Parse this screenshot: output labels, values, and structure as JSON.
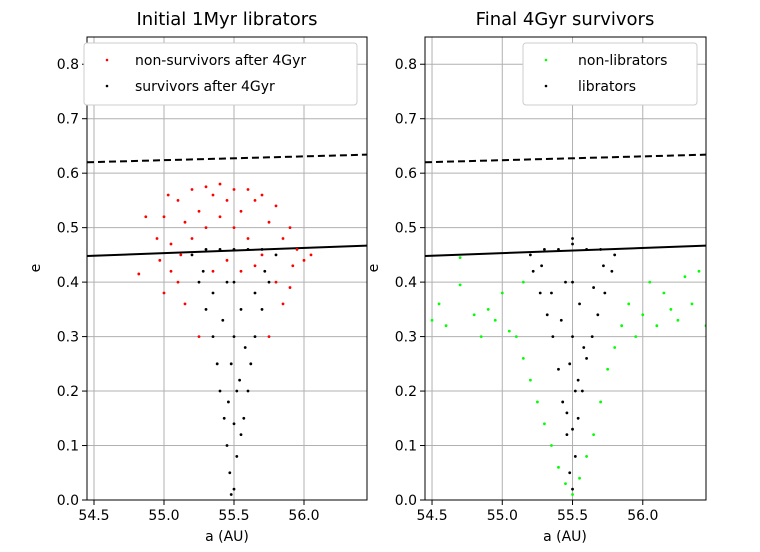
{
  "chart_data": [
    {
      "type": "scatter",
      "title": "Initial 1Myr librators",
      "xlabel": "a (AU)",
      "ylabel": "e",
      "xlim": [
        54.45,
        56.45
      ],
      "ylim": [
        0.0,
        0.85
      ],
      "xticks": [
        "54.5",
        "55.0",
        "55.5",
        "56.0"
      ],
      "yticks": [
        "0.0",
        "0.1",
        "0.2",
        "0.3",
        "0.4",
        "0.5",
        "0.6",
        "0.7",
        "0.8"
      ],
      "grid": true,
      "legend_position": "top-right",
      "lines": [
        {
          "style": "dashed",
          "x": [
            54.45,
            56.45
          ],
          "y": [
            0.62,
            0.634
          ]
        },
        {
          "style": "solid",
          "x": [
            54.45,
            56.45
          ],
          "y": [
            0.448,
            0.467
          ]
        }
      ],
      "series": [
        {
          "name": "non-survivors after 4Gyr",
          "color": "#ff0000",
          "points": [
            [
              55.5,
              0.57
            ],
            [
              55.4,
              0.58
            ],
            [
              55.3,
              0.575
            ],
            [
              55.2,
              0.57
            ],
            [
              55.6,
              0.57
            ],
            [
              55.7,
              0.56
            ],
            [
              55.8,
              0.54
            ],
            [
              55.9,
              0.5
            ],
            [
              55.95,
              0.46
            ],
            [
              56.0,
              0.44
            ],
            [
              55.1,
              0.55
            ],
            [
              55.0,
              0.52
            ],
            [
              54.95,
              0.48
            ],
            [
              54.97,
              0.44
            ],
            [
              55.05,
              0.42
            ],
            [
              55.0,
              0.38
            ],
            [
              55.1,
              0.4
            ],
            [
              55.15,
              0.36
            ],
            [
              55.25,
              0.3
            ],
            [
              55.8,
              0.4
            ],
            [
              55.85,
              0.36
            ],
            [
              55.75,
              0.3
            ],
            [
              55.7,
              0.45
            ],
            [
              55.6,
              0.48
            ],
            [
              55.5,
              0.5
            ],
            [
              55.4,
              0.52
            ],
            [
              55.3,
              0.5
            ],
            [
              55.2,
              0.48
            ],
            [
              55.45,
              0.55
            ],
            [
              55.55,
              0.53
            ],
            [
              55.65,
              0.55
            ],
            [
              55.35,
              0.56
            ],
            [
              55.25,
              0.53
            ],
            [
              55.15,
              0.51
            ],
            [
              55.75,
              0.51
            ],
            [
              55.85,
              0.48
            ],
            [
              55.05,
              0.47
            ],
            [
              54.87,
              0.52
            ],
            [
              54.82,
              0.415
            ],
            [
              55.03,
              0.56
            ],
            [
              56.05,
              0.45
            ],
            [
              55.9,
              0.39
            ],
            [
              55.12,
              0.45
            ],
            [
              55.92,
              0.43
            ],
            [
              55.55,
              0.42
            ],
            [
              55.45,
              0.44
            ],
            [
              55.35,
              0.42
            ],
            [
              55.65,
              0.43
            ]
          ]
        },
        {
          "name": "survivors after 4Gyr",
          "color": "#000000",
          "points": [
            [
              55.48,
              0.01
            ],
            [
              55.5,
              0.02
            ],
            [
              55.47,
              0.05
            ],
            [
              55.52,
              0.08
            ],
            [
              55.45,
              0.1
            ],
            [
              55.55,
              0.12
            ],
            [
              55.43,
              0.15
            ],
            [
              55.57,
              0.15
            ],
            [
              55.4,
              0.2
            ],
            [
              55.6,
              0.2
            ],
            [
              55.38,
              0.25
            ],
            [
              55.62,
              0.25
            ],
            [
              55.35,
              0.3
            ],
            [
              55.65,
              0.3
            ],
            [
              55.3,
              0.35
            ],
            [
              55.7,
              0.35
            ],
            [
              55.25,
              0.4
            ],
            [
              55.75,
              0.4
            ],
            [
              55.2,
              0.45
            ],
            [
              55.8,
              0.45
            ],
            [
              55.5,
              0.46
            ],
            [
              55.4,
              0.46
            ],
            [
              55.6,
              0.46
            ],
            [
              55.3,
              0.46
            ],
            [
              55.7,
              0.46
            ],
            [
              55.45,
              0.4
            ],
            [
              55.55,
              0.35
            ],
            [
              55.5,
              0.3
            ],
            [
              55.48,
              0.25
            ],
            [
              55.52,
              0.2
            ],
            [
              55.35,
              0.38
            ],
            [
              55.65,
              0.38
            ],
            [
              55.42,
              0.33
            ],
            [
              55.58,
              0.28
            ],
            [
              55.5,
              0.4
            ],
            [
              55.28,
              0.42
            ],
            [
              55.72,
              0.42
            ],
            [
              55.46,
              0.18
            ],
            [
              55.54,
              0.22
            ],
            [
              55.5,
              0.14
            ]
          ]
        }
      ]
    },
    {
      "type": "scatter",
      "title": "Final 4Gyr survivors",
      "xlabel": "a (AU)",
      "ylabel": "e",
      "xlim": [
        54.45,
        56.45
      ],
      "ylim": [
        0.0,
        0.85
      ],
      "xticks": [
        "54.5",
        "55.0",
        "55.5",
        "56.0"
      ],
      "yticks": [
        "0.0",
        "0.1",
        "0.2",
        "0.3",
        "0.4",
        "0.5",
        "0.6",
        "0.7",
        "0.8"
      ],
      "grid": true,
      "legend_position": "top-right",
      "lines": [
        {
          "style": "dashed",
          "x": [
            54.45,
            56.45
          ],
          "y": [
            0.62,
            0.634
          ]
        },
        {
          "style": "solid",
          "x": [
            54.45,
            56.45
          ],
          "y": [
            0.448,
            0.467
          ]
        }
      ],
      "series": [
        {
          "name": "non-librators",
          "color": "#00ff00",
          "points": [
            [
              54.5,
              0.33
            ],
            [
              54.55,
              0.36
            ],
            [
              54.6,
              0.32
            ],
            [
              54.7,
              0.445
            ],
            [
              54.8,
              0.34
            ],
            [
              54.85,
              0.3
            ],
            [
              54.9,
              0.35
            ],
            [
              54.95,
              0.33
            ],
            [
              55.0,
              0.38
            ],
            [
              55.05,
              0.31
            ],
            [
              55.1,
              0.3
            ],
            [
              55.15,
              0.26
            ],
            [
              55.2,
              0.22
            ],
            [
              55.25,
              0.18
            ],
            [
              55.3,
              0.14
            ],
            [
              55.35,
              0.1
            ],
            [
              55.4,
              0.06
            ],
            [
              55.45,
              0.03
            ],
            [
              55.5,
              0.01
            ],
            [
              55.55,
              0.04
            ],
            [
              55.6,
              0.08
            ],
            [
              55.65,
              0.12
            ],
            [
              55.7,
              0.18
            ],
            [
              55.75,
              0.24
            ],
            [
              55.8,
              0.28
            ],
            [
              55.85,
              0.32
            ],
            [
              55.9,
              0.36
            ],
            [
              55.95,
              0.3
            ],
            [
              56.0,
              0.34
            ],
            [
              56.05,
              0.4
            ],
            [
              56.1,
              0.32
            ],
            [
              56.15,
              0.38
            ],
            [
              56.2,
              0.35
            ],
            [
              56.25,
              0.33
            ],
            [
              56.3,
              0.41
            ],
            [
              56.35,
              0.36
            ],
            [
              56.4,
              0.42
            ],
            [
              56.45,
              0.32
            ],
            [
              54.7,
              0.395
            ],
            [
              55.15,
              0.4
            ]
          ]
        },
        {
          "name": "librators",
          "color": "#000000",
          "points": [
            [
              55.5,
              0.02
            ],
            [
              55.48,
              0.05
            ],
            [
              55.52,
              0.08
            ],
            [
              55.46,
              0.12
            ],
            [
              55.54,
              0.15
            ],
            [
              55.43,
              0.18
            ],
            [
              55.57,
              0.2
            ],
            [
              55.4,
              0.24
            ],
            [
              55.6,
              0.26
            ],
            [
              55.36,
              0.3
            ],
            [
              55.64,
              0.3
            ],
            [
              55.32,
              0.34
            ],
            [
              55.68,
              0.34
            ],
            [
              55.27,
              0.38
            ],
            [
              55.73,
              0.38
            ],
            [
              55.22,
              0.42
            ],
            [
              55.78,
              0.42
            ],
            [
              55.2,
              0.45
            ],
            [
              55.8,
              0.45
            ],
            [
              55.5,
              0.47
            ],
            [
              55.4,
              0.46
            ],
            [
              55.6,
              0.46
            ],
            [
              55.3,
              0.46
            ],
            [
              55.7,
              0.46
            ],
            [
              55.45,
              0.4
            ],
            [
              55.55,
              0.36
            ],
            [
              55.5,
              0.3
            ],
            [
              55.48,
              0.25
            ],
            [
              55.52,
              0.2
            ],
            [
              55.35,
              0.38
            ],
            [
              55.65,
              0.39
            ],
            [
              55.42,
              0.33
            ],
            [
              55.58,
              0.28
            ],
            [
              55.5,
              0.4
            ],
            [
              55.28,
              0.43
            ],
            [
              55.72,
              0.43
            ],
            [
              55.46,
              0.16
            ],
            [
              55.54,
              0.22
            ],
            [
              55.5,
              0.13
            ],
            [
              55.5,
              0.48
            ]
          ]
        }
      ]
    }
  ]
}
